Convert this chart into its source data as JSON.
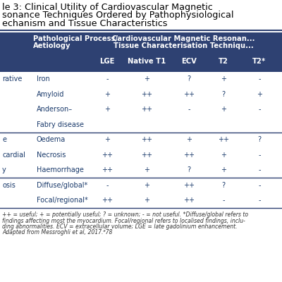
{
  "title_lines": [
    "le 3: Clinical Utility of Cardiovascular Magnetic",
    "sonance Techniques Ordered by Pathophysiological",
    "echanism and Tissue Characteristics"
  ],
  "header_bg": "#2e4172",
  "header_text_color": "#ffffff",
  "divider_color": "#2e4172",
  "body_text_color": "#1a3a6b",
  "sub_headers": [
    "LGE",
    "Native T1",
    "ECV",
    "T2",
    "T2*"
  ],
  "rows": [
    {
      "group": "rative",
      "aetiology": "Iron",
      "vals": [
        "-",
        "+",
        "?",
        "+",
        "-"
      ],
      "group_first": true,
      "group_last": false
    },
    {
      "group": "",
      "aetiology": "Amyloid",
      "vals": [
        "+",
        "++",
        "++",
        "?",
        "+"
      ],
      "group_first": false,
      "group_last": false
    },
    {
      "group": "",
      "aetiology": "Anderson–",
      "vals": [
        "+",
        "++",
        "-",
        "+",
        "-"
      ],
      "group_first": false,
      "group_last": false
    },
    {
      "group": "",
      "aetiology": "Fabry disease",
      "vals": [
        "",
        "",
        "",
        "",
        ""
      ],
      "group_first": false,
      "group_last": true
    },
    {
      "group": "e",
      "aetiology": "Oedema",
      "vals": [
        "+",
        "++",
        "+",
        "++",
        "?"
      ],
      "group_first": true,
      "group_last": false
    },
    {
      "group": "cardial",
      "aetiology": "Necrosis",
      "vals": [
        "++",
        "++",
        "++",
        "+",
        "-"
      ],
      "group_first": false,
      "group_last": false
    },
    {
      "group": "y",
      "aetiology": "Haemorrhage",
      "vals": [
        "++",
        "+",
        "?",
        "+",
        "-"
      ],
      "group_first": false,
      "group_last": true
    },
    {
      "group": "osis",
      "aetiology": "Diffuse/global*",
      "vals": [
        "-",
        "+",
        "++",
        "?",
        "-"
      ],
      "group_first": true,
      "group_last": false
    },
    {
      "group": "",
      "aetiology": "Focal/regional*",
      "vals": [
        "++",
        "+",
        "++",
        "-",
        "-"
      ],
      "group_first": false,
      "group_last": true
    }
  ],
  "footnote_lines": [
    "++ = useful; + = potentially useful; ? = unknown; - = not useful. *Diffuse/global refers to",
    "findings affecting most the myocardium. Focal/regional refers to localised findings, inclu-",
    "ding abnormalities. ECV = extracellular volume; LGE = late gadolinium enhancement.",
    "Adapted from Messroghli et al, 2017.⁸78"
  ],
  "title_fontsize": 9.2,
  "header_fontsize": 7.2,
  "body_fontsize": 7.0,
  "footnote_fontsize": 5.6,
  "group_label_color": "#1a3a6b",
  "footnote_color": "#333333"
}
